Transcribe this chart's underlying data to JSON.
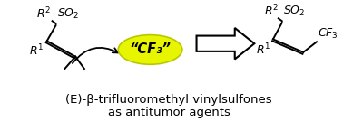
{
  "title_line1": "(E)-β-trifluoromethyl vinylsulfones",
  "title_line2": "as antitumor agents",
  "cf3_label": "“CF₃”",
  "ellipse_color": "#e8f500",
  "ellipse_edge": "#b8c800",
  "background": "#ffffff",
  "text_color": "#000000",
  "title_fontsize": 9.5,
  "big_arrow_fill": "#ffffff",
  "big_arrow_edge": "#000000",
  "lw": 1.4
}
